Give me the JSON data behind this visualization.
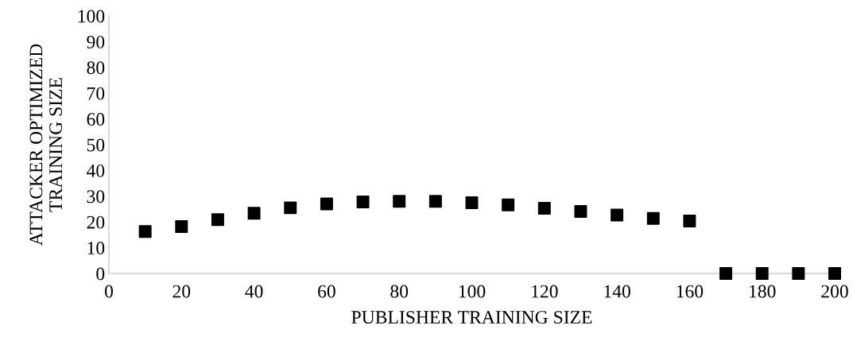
{
  "chart_data": {
    "type": "scatter",
    "xlabel": "PUBLISHER TRAINING SIZE",
    "ylabel": "ATTACKER OPTIMIZED\nTRAINING SIZE",
    "x": [
      10,
      20,
      30,
      40,
      50,
      60,
      70,
      80,
      90,
      100,
      110,
      120,
      130,
      140,
      150,
      160,
      170,
      180,
      190,
      200
    ],
    "series": [
      {
        "color": "#000000",
        "values": [
          16.3,
          18.2,
          20.9,
          23.4,
          25.5,
          27.0,
          27.8,
          28.0,
          28.0,
          27.5,
          26.6,
          25.3,
          24.1,
          22.7,
          21.4,
          20.4,
          0,
          0,
          0,
          0
        ]
      }
    ],
    "marker": "square",
    "xlim": [
      0,
      200
    ],
    "xticks": [
      0,
      20,
      40,
      60,
      80,
      100,
      120,
      140,
      160,
      180,
      200
    ],
    "ylim": [
      0,
      100
    ],
    "yticks": [
      0,
      10,
      20,
      30,
      40,
      50,
      60,
      70,
      80,
      90,
      100
    ],
    "grid": false,
    "legend": false
  }
}
